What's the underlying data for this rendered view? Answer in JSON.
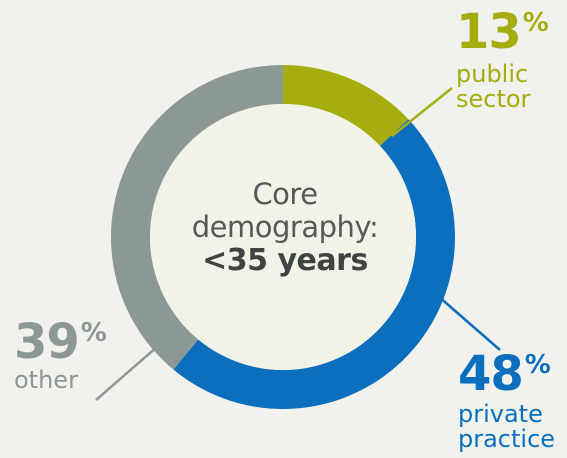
{
  "chart_data": {
    "type": "pie",
    "variant": "donut",
    "center_text": {
      "line1": "Core",
      "line2": "demography:",
      "line3": "<35 years"
    },
    "slices": [
      {
        "label_line1": "public",
        "label_line2": "sector",
        "value": 13,
        "value_text": "13",
        "unit": "%",
        "color": "#a5ad0f"
      },
      {
        "label_line1": "private",
        "label_line2": "practice",
        "value": 48,
        "value_text": "48",
        "unit": "%",
        "color": "#0b6fbd"
      },
      {
        "label_line1": "other",
        "label_line2": "",
        "value": 39,
        "value_text": "39",
        "unit": "%",
        "color": "#8c9894"
      }
    ],
    "center_fill": "#f2f3e8"
  }
}
